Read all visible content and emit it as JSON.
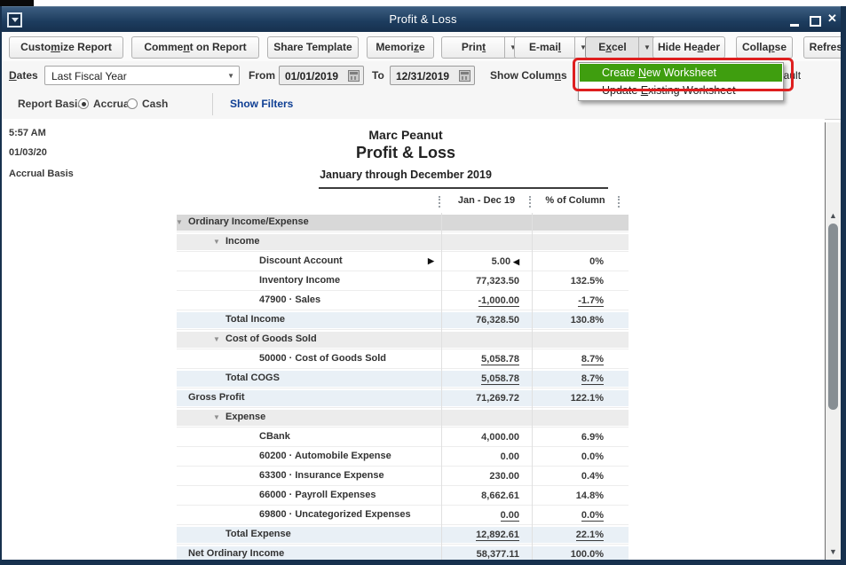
{
  "window": {
    "title": "Profit & Loss",
    "controls": {
      "minimize": "minimize",
      "maximize": "maximize",
      "close": "✕"
    }
  },
  "toolbar": {
    "buttons": [
      {
        "label": "Customize Report",
        "mnemonic": "m"
      },
      {
        "label": "Comment on Report",
        "mnemonic": "n"
      },
      {
        "label": "Share Template",
        "mnemonic": ""
      },
      {
        "label": "Memorize",
        "mnemonic": "z"
      },
      {
        "label": "Print",
        "mnemonic": "t",
        "arrow": true
      },
      {
        "label": "E-mail",
        "mnemonic": "l",
        "arrow": true
      },
      {
        "label": "Excel",
        "mnemonic": "x",
        "arrow": true,
        "pressed": true
      },
      {
        "label": "Hide Header",
        "mnemonic": "a"
      },
      {
        "label": "Collapse",
        "mnemonic": "p"
      },
      {
        "label": "Refresh",
        "mnemonic": ""
      }
    ]
  },
  "excel_menu": {
    "items": [
      {
        "label": "Create New Worksheet",
        "mnemonic": "N",
        "highlighted": true
      },
      {
        "label": "Update Existing Worksheet",
        "mnemonic": "E",
        "highlighted": false
      }
    ]
  },
  "filter_bar": {
    "dates_label": {
      "label": "Dates",
      "mnemonic": "D"
    },
    "dates_value": "Last Fiscal Year",
    "from_label": "From",
    "from_value": "01/01/2019",
    "to_label": "To",
    "to_value": "12/31/2019",
    "show_columns_label": {
      "label": "Show Columns",
      "mnemonic": "n"
    },
    "sort_by_value": "Default"
  },
  "basis_bar": {
    "label": "Report Basis:",
    "options": [
      {
        "label": "Accrual",
        "selected": true
      },
      {
        "label": "Cash",
        "selected": false
      }
    ],
    "show_filters": "Show Filters"
  },
  "report": {
    "time": "5:57 AM",
    "date": "01/03/20",
    "basis": "Accrual Basis",
    "company": "Marc Peanut",
    "title": "Profit & Loss",
    "subtitle": "January through December 2019",
    "table": {
      "columns": [
        "Jan - Dec 19",
        "% of Column"
      ],
      "rows": [
        {
          "label": "Ordinary Income/Expense",
          "indent": 0,
          "triangle": true,
          "band": "dark"
        },
        {
          "label": "Income",
          "indent": 1,
          "triangle": true,
          "band": "light"
        },
        {
          "label": "Discount Account",
          "indent": 2,
          "value": "5.00",
          "pct": "0%",
          "quickzoom_arrows": true
        },
        {
          "label": "Inventory Income",
          "indent": 2,
          "value": "77,323.50",
          "pct": "132.5%"
        },
        {
          "label": "47900 · Sales",
          "indent": 2,
          "value": "-1,000.00",
          "pct": "-1.7%",
          "underline": true
        },
        {
          "label": "Total Income",
          "indent": 1,
          "value": "76,328.50",
          "pct": "130.8%",
          "band": "blue"
        },
        {
          "label": "Cost of Goods Sold",
          "indent": 1,
          "triangle": true,
          "band": "light"
        },
        {
          "label": "50000 · Cost of Goods Sold",
          "indent": 2,
          "value": "5,058.78",
          "pct": "8.7%",
          "underline": true
        },
        {
          "label": "Total COGS",
          "indent": 1,
          "value": "5,058.78",
          "pct": "8.7%",
          "band": "blue",
          "underline": true
        },
        {
          "label": "Gross Profit",
          "indent": 0,
          "value": "71,269.72",
          "pct": "122.1%",
          "band": "blue"
        },
        {
          "label": "Expense",
          "indent": 1,
          "triangle": true,
          "band": "light"
        },
        {
          "label": "CBank",
          "indent": 2,
          "value": "4,000.00",
          "pct": "6.9%"
        },
        {
          "label": "60200 · Automobile Expense",
          "indent": 2,
          "value": "0.00",
          "pct": "0.0%"
        },
        {
          "label": "63300 · Insurance Expense",
          "indent": 2,
          "value": "230.00",
          "pct": "0.4%"
        },
        {
          "label": "66000 · Payroll Expenses",
          "indent": 2,
          "value": "8,662.61",
          "pct": "14.8%"
        },
        {
          "label": "69800 · Uncategorized Expenses",
          "indent": 2,
          "value": "0.00",
          "pct": "0.0%",
          "underline": true
        },
        {
          "label": "Total Expense",
          "indent": 1,
          "value": "12,892.61",
          "pct": "22.1%",
          "band": "blue",
          "underline": true
        },
        {
          "label": "Net Ordinary Income",
          "indent": 0,
          "value": "58,377.11",
          "pct": "100.0%",
          "band": "blue"
        }
      ]
    }
  },
  "colors": {
    "titlebar_navy": "#1d3d5f",
    "frame_navy": "#17314e",
    "menu_highlight_green": "#3f9e0f",
    "annotation_red": "#de1f1f",
    "link_blue": "#0f3f94",
    "band_dark": "#d8d8d8",
    "band_light": "#ececec",
    "band_blue": "#e9f0f6"
  }
}
